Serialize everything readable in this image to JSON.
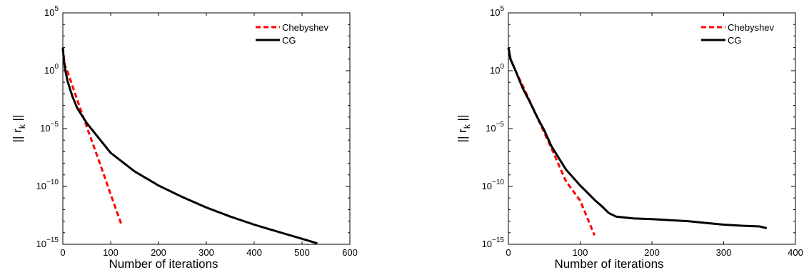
{
  "chart_data": [
    {
      "type": "line",
      "xlabel": "Number of iterations",
      "ylabel": "|| r_k ||",
      "ylabel_main": "|| r",
      "ylabel_sub": "k",
      "ylabel_end": " ||",
      "xlim": [
        0,
        600
      ],
      "ylim": [
        1e-15,
        100000.0
      ],
      "yscale": "log",
      "xticks": [
        "0",
        "100",
        "200",
        "300",
        "400",
        "500",
        "600"
      ],
      "yticks": [
        {
          "base": "10",
          "exp": "5"
        },
        {
          "base": "10",
          "exp": "0"
        },
        {
          "base": "10",
          "exp": "−5"
        },
        {
          "base": "10",
          "exp": "−10"
        },
        {
          "base": "10",
          "exp": "−15"
        }
      ],
      "legend_position": "top-right",
      "series": [
        {
          "name": "Chebyshev",
          "color": "#ff0000",
          "style": "dashed",
          "points": [
            [
              0,
              100
            ],
            [
              4,
              3
            ],
            [
              10,
              0.8
            ],
            [
              20,
              0.05
            ],
            [
              40,
              0.0002
            ],
            [
              60,
              1e-06
            ],
            [
              80,
              5e-09
            ],
            [
              100,
              2e-11
            ],
            [
              122,
              6e-14
            ]
          ]
        },
        {
          "name": "CG",
          "color": "#000000",
          "style": "solid",
          "points": [
            [
              0,
              100
            ],
            [
              2,
              10
            ],
            [
              5,
              1.2
            ],
            [
              10,
              0.12
            ],
            [
              20,
              0.006
            ],
            [
              30,
              0.0006
            ],
            [
              50,
              3e-05
            ],
            [
              75,
              1.5e-06
            ],
            [
              100,
              8e-08
            ],
            [
              150,
              2e-09
            ],
            [
              200,
              1.2e-10
            ],
            [
              250,
              1.2e-11
            ],
            [
              300,
              1.5e-12
            ],
            [
              350,
              2.5e-13
            ],
            [
              400,
              5e-14
            ],
            [
              450,
              1.2e-14
            ],
            [
              500,
              3e-15
            ],
            [
              532,
              1.2e-15
            ]
          ]
        }
      ]
    },
    {
      "type": "line",
      "xlabel": "Number of iterations",
      "ylabel": "|| r_k ||",
      "ylabel_main": "|| r",
      "ylabel_sub": "k",
      "ylabel_end": " ||",
      "xlim": [
        0,
        400
      ],
      "ylim": [
        1e-15,
        100000.0
      ],
      "yscale": "log",
      "xticks": [
        "0",
        "100",
        "200",
        "300",
        "400"
      ],
      "yticks": [
        {
          "base": "10",
          "exp": "5"
        },
        {
          "base": "10",
          "exp": "0"
        },
        {
          "base": "10",
          "exp": "−5"
        },
        {
          "base": "10",
          "exp": "−10"
        },
        {
          "base": "10",
          "exp": "−15"
        }
      ],
      "legend_position": "top-right",
      "series": [
        {
          "name": "Chebyshev",
          "color": "#ff0000",
          "style": "dashed",
          "points": [
            [
              0,
              100
            ],
            [
              3,
              10
            ],
            [
              10,
              1
            ],
            [
              20,
              0.05
            ],
            [
              40,
              0.0001
            ],
            [
              60,
              2e-07
            ],
            [
              80,
              3e-10
            ],
            [
              100,
              6e-12
            ],
            [
              120,
              6e-15
            ]
          ]
        },
        {
          "name": "CG",
          "color": "#000000",
          "style": "solid",
          "points": [
            [
              0,
              100
            ],
            [
              3,
              10
            ],
            [
              10,
              1
            ],
            [
              20,
              0.03
            ],
            [
              30,
              0.002
            ],
            [
              40,
              0.0001
            ],
            [
              50,
              7e-06
            ],
            [
              60,
              3e-07
            ],
            [
              70,
              3e-08
            ],
            [
              80,
              3e-09
            ],
            [
              90,
              6e-10
            ],
            [
              100,
              1.2e-10
            ],
            [
              110,
              3e-11
            ],
            [
              120,
              7e-12
            ],
            [
              130,
              2e-12
            ],
            [
              140,
              5e-13
            ],
            [
              150,
              2.5e-13
            ],
            [
              175,
              1.7e-13
            ],
            [
              200,
              1.5e-13
            ],
            [
              225,
              1.2e-13
            ],
            [
              250,
              1e-13
            ],
            [
              275,
              7e-14
            ],
            [
              300,
              5e-14
            ],
            [
              325,
              4e-14
            ],
            [
              350,
              3.5e-14
            ],
            [
              360,
              2.5e-14
            ]
          ]
        }
      ]
    }
  ]
}
